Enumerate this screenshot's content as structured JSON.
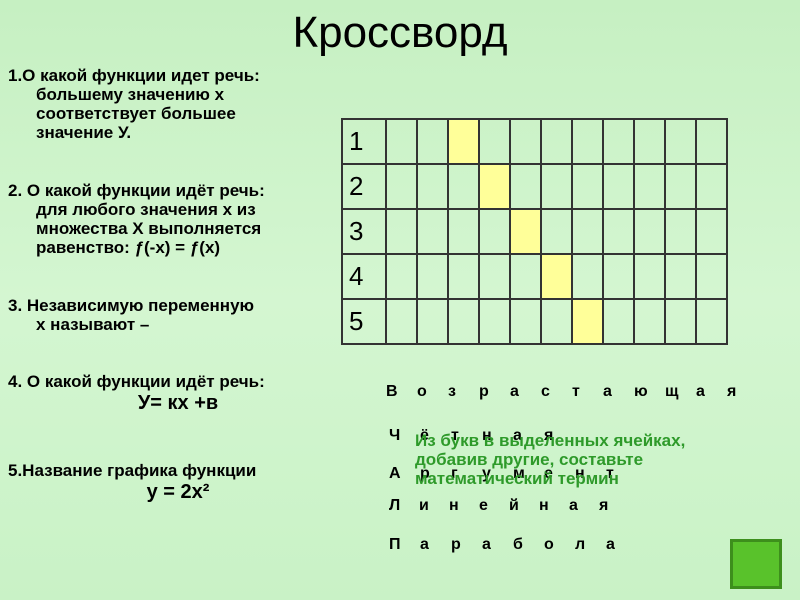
{
  "title": "Кроссворд",
  "questions": [
    {
      "lines": [
        "1.О какой функции идет речь:",
        "большему значению х",
        "соответствует  большее",
        "значение У."
      ]
    },
    {
      "lines": [
        "2. О какой функции идёт речь:",
        "для любого значения x  из",
        "множества Х выполняется",
        "равенство: ƒ(-х) = ƒ(х)"
      ]
    },
    {
      "lines": [
        "3. Независимую переменную",
        "х называют –"
      ]
    },
    {
      "lines": [
        "4. О какой функции идёт речь:"
      ],
      "formula": "У= кх +в"
    },
    {
      "lines": [
        "5.Название графика функции"
      ],
      "formula": "у = 2х²"
    }
  ],
  "grid": {
    "row_numbers": [
      "1",
      "2",
      "3",
      "4",
      "5"
    ],
    "highlight_columns": [
      3,
      4,
      5,
      6,
      7
    ]
  },
  "answers": [
    {
      "letters": [
        "В",
        "о",
        "з",
        "р",
        "а",
        "с",
        "т",
        "а",
        "ю",
        "щ",
        "а",
        "я"
      ]
    },
    {
      "letters": [
        "Ч",
        "ё",
        "т",
        "н",
        "а",
        "я"
      ]
    },
    {
      "letters": [
        "А",
        "р",
        "г",
        "у",
        "м",
        "е",
        "н",
        "т"
      ]
    },
    {
      "letters": [
        "Л",
        "и",
        "н",
        "е",
        "й",
        "н",
        "а",
        "я"
      ]
    },
    {
      "letters": [
        "П",
        "а",
        "р",
        "а",
        "б",
        "о",
        "л",
        "а"
      ]
    }
  ],
  "instruction": "Из букв в выделенных ячейках, добавив другие, составьте математический термин",
  "colors": {
    "highlight": "#ffff99",
    "instruction": "#2e9a2a",
    "button": "#59c22b"
  }
}
